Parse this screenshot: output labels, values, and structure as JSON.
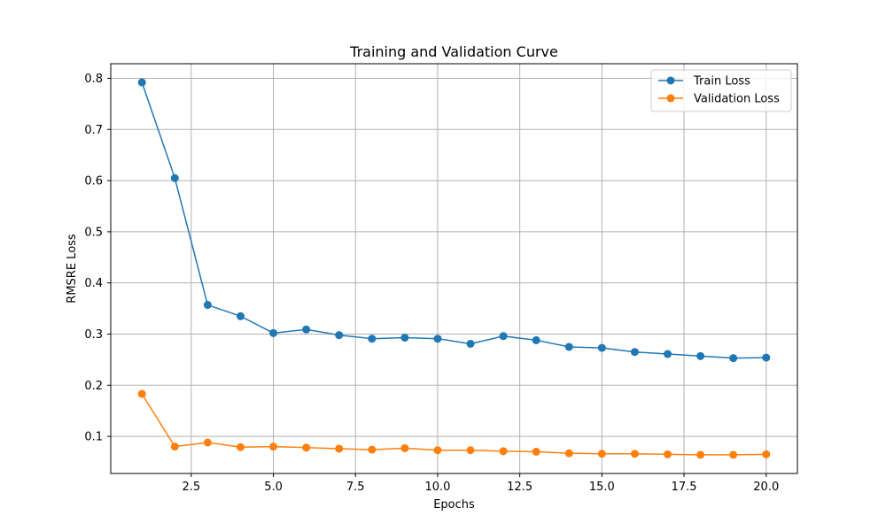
{
  "chart_data": {
    "type": "line",
    "title": "Training and Validation Curve",
    "xlabel": "Epochs",
    "ylabel": "RMSRE Loss",
    "xlim": [
      0.05,
      20.95
    ],
    "ylim": [
      0.0275,
      0.8285
    ],
    "x_ticks": [
      2.5,
      5.0,
      7.5,
      10.0,
      12.5,
      15.0,
      17.5,
      20.0
    ],
    "x_tick_labels": [
      "2.5",
      "5.0",
      "7.5",
      "10.0",
      "12.5",
      "15.0",
      "17.5",
      "20.0"
    ],
    "y_ticks": [
      0.1,
      0.2,
      0.3,
      0.4,
      0.5,
      0.6,
      0.7,
      0.8
    ],
    "y_tick_labels": [
      "0.1",
      "0.2",
      "0.3",
      "0.4",
      "0.5",
      "0.6",
      "0.7",
      "0.8"
    ],
    "grid": true,
    "legend_position": "top-right",
    "x": [
      1,
      2,
      3,
      4,
      5,
      6,
      7,
      8,
      9,
      10,
      11,
      12,
      13,
      14,
      15,
      16,
      17,
      18,
      19,
      20
    ],
    "series": [
      {
        "name": "Train Loss",
        "color": "#1f77b4",
        "marker": "circle",
        "values": [
          0.792,
          0.605,
          0.357,
          0.335,
          0.302,
          0.309,
          0.298,
          0.291,
          0.293,
          0.291,
          0.281,
          0.296,
          0.288,
          0.275,
          0.273,
          0.265,
          0.261,
          0.257,
          0.253,
          0.254
        ]
      },
      {
        "name": "Validation Loss",
        "color": "#ff7f0e",
        "marker": "circle",
        "values": [
          0.183,
          0.08,
          0.088,
          0.079,
          0.08,
          0.078,
          0.076,
          0.074,
          0.077,
          0.073,
          0.073,
          0.071,
          0.07,
          0.067,
          0.066,
          0.066,
          0.065,
          0.064,
          0.064,
          0.065
        ]
      }
    ]
  }
}
